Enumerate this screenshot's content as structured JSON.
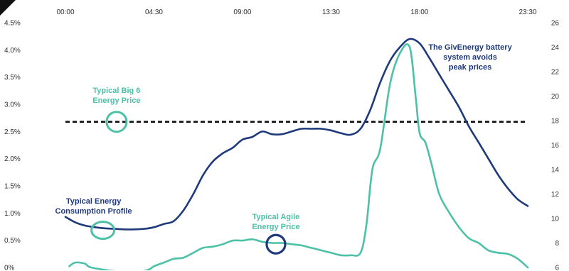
{
  "chart_data": {
    "type": "line",
    "x_ticks": [
      "00:00",
      "04:30",
      "09:00",
      "13:30",
      "18:00",
      "23:30"
    ],
    "y_left_ticks": [
      "4.5%",
      "4.0%",
      "3.5%",
      "3.0%",
      "2.5%",
      "2.0%",
      "1.5%",
      "1.0%",
      "0.5%",
      "0%"
    ],
    "y_right_ticks": [
      "26",
      "24",
      "22",
      "20",
      "18",
      "16",
      "14",
      "12",
      "10",
      "8",
      "6"
    ],
    "ylim_left": [
      0,
      4.5
    ],
    "ylim_right": [
      6,
      26
    ],
    "xlim_hours": [
      0,
      23.5
    ],
    "colors": {
      "consumption": "#1f3a7a",
      "agile": "#4cc1a7",
      "big6": "#111111",
      "text": "#2f2f2f"
    },
    "series": [
      {
        "key": "consumption",
        "axis": "left",
        "points": [
          [
            0.0,
            0.93
          ],
          [
            0.5,
            0.83
          ],
          [
            1.0,
            0.77
          ],
          [
            1.5,
            0.74
          ],
          [
            2.0,
            0.72
          ],
          [
            2.5,
            0.71
          ],
          [
            3.0,
            0.7
          ],
          [
            3.5,
            0.7
          ],
          [
            4.0,
            0.71
          ],
          [
            4.5,
            0.74
          ],
          [
            5.0,
            0.8
          ],
          [
            5.5,
            0.85
          ],
          [
            6.0,
            1.05
          ],
          [
            6.5,
            1.35
          ],
          [
            7.0,
            1.7
          ],
          [
            7.5,
            1.95
          ],
          [
            8.0,
            2.1
          ],
          [
            8.5,
            2.2
          ],
          [
            9.0,
            2.35
          ],
          [
            9.5,
            2.4
          ],
          [
            10.0,
            2.5
          ],
          [
            10.5,
            2.45
          ],
          [
            11.0,
            2.45
          ],
          [
            11.5,
            2.5
          ],
          [
            12.0,
            2.55
          ],
          [
            12.5,
            2.55
          ],
          [
            13.0,
            2.55
          ],
          [
            13.5,
            2.52
          ],
          [
            14.0,
            2.47
          ],
          [
            14.5,
            2.44
          ],
          [
            15.0,
            2.55
          ],
          [
            15.5,
            2.9
          ],
          [
            16.0,
            3.4
          ],
          [
            16.5,
            3.8
          ],
          [
            17.0,
            4.05
          ],
          [
            17.5,
            4.2
          ],
          [
            18.0,
            4.12
          ],
          [
            18.5,
            3.85
          ],
          [
            19.0,
            3.55
          ],
          [
            19.5,
            3.25
          ],
          [
            20.0,
            2.95
          ],
          [
            20.5,
            2.6
          ],
          [
            21.0,
            2.3
          ],
          [
            21.5,
            2.0
          ],
          [
            22.0,
            1.7
          ],
          [
            22.5,
            1.45
          ],
          [
            23.0,
            1.25
          ],
          [
            23.5,
            1.13
          ]
        ]
      },
      {
        "key": "agile",
        "axis": "right",
        "points": [
          [
            0.2,
            6.1
          ],
          [
            0.5,
            6.4
          ],
          [
            1.0,
            6.3
          ],
          [
            1.3,
            6.0
          ],
          [
            2.5,
            5.7
          ],
          [
            3.5,
            5.6
          ],
          [
            4.2,
            5.8
          ],
          [
            4.5,
            6.1
          ],
          [
            5.0,
            6.4
          ],
          [
            5.5,
            6.7
          ],
          [
            6.0,
            6.8
          ],
          [
            6.5,
            7.2
          ],
          [
            7.0,
            7.6
          ],
          [
            7.5,
            7.7
          ],
          [
            8.0,
            7.9
          ],
          [
            8.5,
            8.2
          ],
          [
            9.0,
            8.2
          ],
          [
            9.5,
            8.3
          ],
          [
            10.0,
            8.1
          ],
          [
            10.5,
            8.0
          ],
          [
            11.0,
            8.0
          ],
          [
            11.5,
            7.9
          ],
          [
            12.0,
            7.8
          ],
          [
            12.5,
            7.6
          ],
          [
            13.0,
            7.4
          ],
          [
            13.5,
            7.2
          ],
          [
            14.0,
            7.0
          ],
          [
            14.5,
            7.0
          ],
          [
            15.0,
            7.2
          ],
          [
            15.3,
            9.5
          ],
          [
            15.6,
            14.0
          ],
          [
            16.0,
            15.7
          ],
          [
            16.5,
            21.0
          ],
          [
            17.0,
            23.5
          ],
          [
            17.5,
            24.0
          ],
          [
            17.8,
            20.0
          ],
          [
            18.0,
            17.0
          ],
          [
            18.3,
            16.2
          ],
          [
            18.6,
            14.5
          ],
          [
            19.0,
            12.0
          ],
          [
            19.5,
            10.5
          ],
          [
            20.0,
            9.3
          ],
          [
            20.5,
            8.4
          ],
          [
            21.0,
            8.0
          ],
          [
            21.5,
            7.4
          ],
          [
            22.0,
            7.2
          ],
          [
            22.5,
            7.1
          ],
          [
            23.0,
            6.7
          ],
          [
            23.5,
            6.0
          ]
        ]
      }
    ],
    "big6_price": {
      "axis": "right",
      "value": 17.9,
      "x_range": [
        0,
        23.5
      ]
    },
    "annotations": {
      "big6": [
        "Typical Big 6",
        "Energy Price"
      ],
      "consumption": [
        "Typical Energy",
        "Consumption Profile"
      ],
      "agile": [
        "Typical Agile",
        "Energy Price"
      ],
      "battery": [
        "The GivEnergy battery",
        "system avoids",
        "peak prices"
      ]
    },
    "marker_points": {
      "big6_marker": {
        "axis": "right",
        "x": 2.6,
        "y": 17.9
      },
      "consumption_marker": {
        "axis": "left",
        "x": 2.3,
        "y": 0.71
      },
      "agile_marker": {
        "axis": "right",
        "x": 10.7,
        "y": 7.9
      }
    },
    "grid": false,
    "legend": "none"
  }
}
